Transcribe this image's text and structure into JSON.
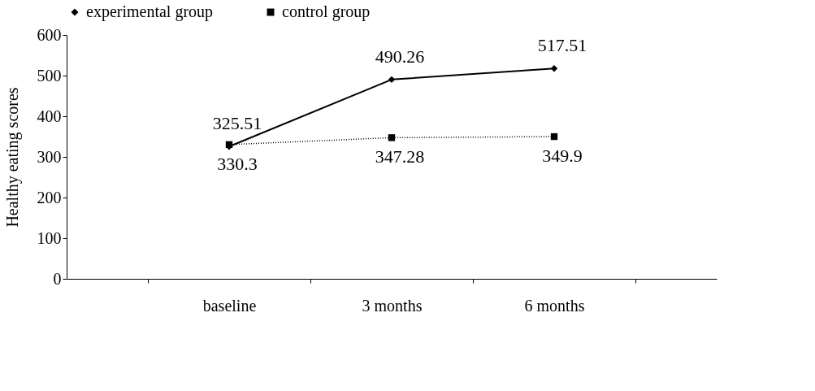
{
  "chart_data": {
    "type": "line",
    "ylabel": "Healthy eating scores",
    "categories": [
      "baseline",
      "3 months",
      "6 months"
    ],
    "series": [
      {
        "name": "experimental group",
        "color": "#000000",
        "values": [
          325.51,
          490.26,
          517.51
        ],
        "marker": "diamond",
        "line_style": "solid"
      },
      {
        "name": "control group",
        "color": "#000000",
        "values": [
          330.3,
          347.28,
          349.9
        ],
        "marker": "square",
        "line_style": "dotted"
      }
    ],
    "ylim": [
      0,
      600
    ],
    "yticks": [
      0,
      100,
      200,
      300,
      400,
      500,
      600
    ],
    "grid": false,
    "legend": "top",
    "data_labels": true
  }
}
